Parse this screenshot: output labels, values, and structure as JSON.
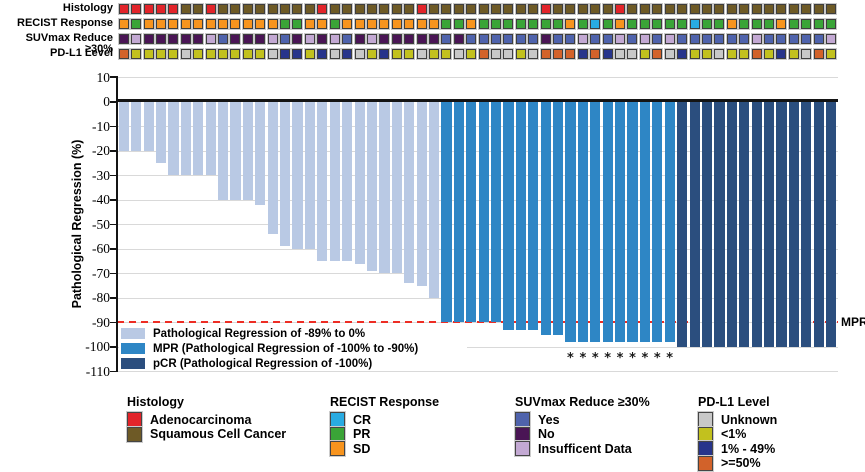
{
  "colors": {
    "adenocarcinoma": "#e2242a",
    "squamous": "#6e5a26",
    "recist_cr": "#29abe2",
    "recist_pr": "#3aa437",
    "recist_sd": "#f7941e",
    "suv_yes": "#4f63ac",
    "suv_no": "#4a1555",
    "suv_insufficient": "#c3a9d3",
    "pdl1_unknown": "#c8c8c8",
    "pdl1_lt1": "#c2c11e",
    "pdl1_1to49": "#27348b",
    "pdl1_ge50": "#d2622a",
    "bar_light": "#b9c9e4",
    "bar_mid": "#2e86c5",
    "bar_dark": "#2b4e7e",
    "mpr_line": "#ed2d24",
    "grid": "#d9d9d9"
  },
  "tracks": {
    "labels": [
      "Histology",
      "RECIST Response",
      "SUVmax Reduce ≥30%",
      "PD-L1 Level"
    ],
    "histology": [
      "A",
      "A",
      "A",
      "A",
      "A",
      "S",
      "S",
      "A",
      "S",
      "S",
      "S",
      "S",
      "S",
      "S",
      "S",
      "S",
      "A",
      "S",
      "S",
      "S",
      "S",
      "S",
      "S",
      "S",
      "A",
      "S",
      "S",
      "S",
      "S",
      "S",
      "S",
      "S",
      "S",
      "S",
      "A",
      "S",
      "S",
      "S",
      "S",
      "S",
      "A",
      "S",
      "S",
      "S",
      "S",
      "S",
      "S",
      "S",
      "S",
      "S",
      "S",
      "S",
      "S",
      "S",
      "S",
      "S",
      "S",
      "S"
    ],
    "recist": [
      "D",
      "P",
      "D",
      "D",
      "D",
      "D",
      "D",
      "D",
      "D",
      "D",
      "D",
      "D",
      "D",
      "P",
      "P",
      "D",
      "D",
      "P",
      "D",
      "D",
      "D",
      "D",
      "D",
      "D",
      "D",
      "D",
      "P",
      "P",
      "D",
      "P",
      "P",
      "P",
      "P",
      "P",
      "P",
      "P",
      "D",
      "P",
      "C",
      "P",
      "D",
      "P",
      "P",
      "P",
      "P",
      "P",
      "C",
      "P",
      "P",
      "D",
      "P",
      "P",
      "P",
      "D",
      "P",
      "P",
      "P",
      "P"
    ],
    "suvmax": [
      "N",
      "I",
      "N",
      "N",
      "N",
      "N",
      "N",
      "I",
      "Y",
      "N",
      "N",
      "N",
      "I",
      "Y",
      "N",
      "I",
      "N",
      "I",
      "Y",
      "N",
      "I",
      "N",
      "N",
      "N",
      "N",
      "N",
      "Y",
      "N",
      "Y",
      "Y",
      "Y",
      "Y",
      "Y",
      "Y",
      "N",
      "Y",
      "Y",
      "I",
      "Y",
      "Y",
      "I",
      "Y",
      "I",
      "Y",
      "I",
      "Y",
      "Y",
      "Y",
      "Y",
      "Y",
      "Y",
      "I",
      "Y",
      "Y",
      "Y",
      "Y",
      "Y",
      "I"
    ],
    "pdl1": [
      "H",
      "L",
      "L",
      "L",
      "L",
      "U",
      "L",
      "L",
      "L",
      "L",
      "L",
      "L",
      "U",
      "M",
      "M",
      "L",
      "M",
      "U",
      "M",
      "U",
      "L",
      "M",
      "L",
      "L",
      "U",
      "L",
      "L",
      "U",
      "L",
      "H",
      "U",
      "U",
      "L",
      "U",
      "H",
      "H",
      "H",
      "M",
      "H",
      "M",
      "U",
      "U",
      "L",
      "H",
      "U",
      "M",
      "L",
      "L",
      "U",
      "L",
      "L",
      "H",
      "L",
      "M",
      "L",
      "U",
      "H",
      "L"
    ]
  },
  "track_color_keys": {
    "A": "adenocarcinoma",
    "S": "squamous",
    "C": "recist_cr",
    "P": "recist_pr",
    "D": "recist_sd",
    "Y": "suv_yes",
    "N": "suv_no",
    "I": "suv_insufficient",
    "U": "pdl1_unknown",
    "L": "pdl1_lt1",
    "M": "pdl1_1to49",
    "H": "pdl1_ge50"
  },
  "chart_data": {
    "type": "bar",
    "ylabel": "Pathological Regression (%)",
    "ylim": [
      -110,
      10
    ],
    "yticks": [
      10,
      0,
      -10,
      -20,
      -30,
      -40,
      -50,
      -60,
      -70,
      -80,
      -90,
      -100,
      -110
    ],
    "grid": "horizontal",
    "values": [
      -20,
      -20,
      -20,
      -25,
      -30,
      -30,
      -30,
      -30,
      -40,
      -40,
      -40,
      -42,
      -54,
      -59,
      -60,
      -60,
      -65,
      -65,
      -65,
      -66,
      -69,
      -70,
      -70,
      -74,
      -75,
      -80,
      -90,
      -90,
      -90,
      -90,
      -90,
      -93,
      -93,
      -93,
      -95,
      -95,
      -98,
      -98,
      -98,
      -98,
      -98,
      -98,
      -98,
      -98,
      -98,
      -100,
      -100,
      -100,
      -100,
      -100,
      -100,
      -100,
      -100,
      -100,
      -100,
      -100,
      -100,
      -100
    ],
    "bar_groups": [
      {
        "label": "Pathological Regression of -89% to 0%",
        "count": 26,
        "color_key": "bar_light"
      },
      {
        "label": "MPR (Pathological Regression of -100% to -90%)",
        "count": 19,
        "color_key": "bar_mid"
      },
      {
        "label": "pCR (Pathological Regression of -100%)",
        "count": 13,
        "color_key": "bar_dark"
      }
    ],
    "reference_line": {
      "value": -90,
      "label": "MPR",
      "style": "dashed",
      "color_key": "mpr_line"
    },
    "asterisk_bars": [
      37,
      38,
      39,
      40,
      41,
      42,
      43,
      44,
      45
    ]
  },
  "bottom_legend": {
    "groups": [
      {
        "title": "Histology",
        "items": [
          {
            "label": "Adenocarcinoma",
            "color_key": "adenocarcinoma"
          },
          {
            "label": "Squamous Cell Cancer",
            "color_key": "squamous"
          }
        ]
      },
      {
        "title": "RECIST Response",
        "items": [
          {
            "label": "CR",
            "color_key": "recist_cr"
          },
          {
            "label": "PR",
            "color_key": "recist_pr"
          },
          {
            "label": "SD",
            "color_key": "recist_sd"
          }
        ]
      },
      {
        "title": "SUVmax Reduce ≥30%",
        "items": [
          {
            "label": "Yes",
            "color_key": "suv_yes"
          },
          {
            "label": "No",
            "color_key": "suv_no"
          },
          {
            "label": "Insufficent Data",
            "color_key": "suv_insufficient"
          }
        ]
      },
      {
        "title": "PD-L1 Level",
        "items": [
          {
            "label": "Unknown",
            "color_key": "pdl1_unknown"
          },
          {
            "label": "<1%",
            "color_key": "pdl1_lt1"
          },
          {
            "label": "1% - 49%",
            "color_key": "pdl1_1to49"
          },
          {
            "label": ">=50%",
            "color_key": "pdl1_ge50"
          }
        ]
      }
    ]
  }
}
